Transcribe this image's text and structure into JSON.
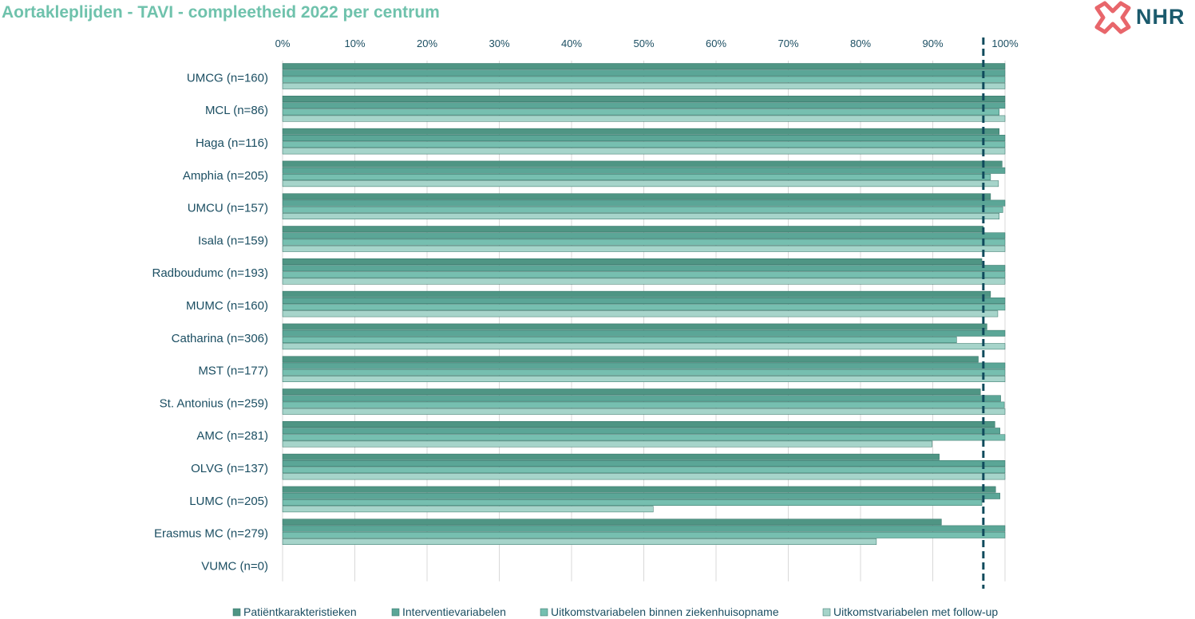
{
  "title": "Aortakleplijden - TAVI  - compleetheid 2022 per centrum",
  "logo": {
    "text": "NHR",
    "icon": "nhr-cross-logo-icon"
  },
  "colors": {
    "series": [
      "#4f9584",
      "#5ba697",
      "#76bfb0",
      "#a6d4ca"
    ],
    "bar_border": "#2e6e62",
    "gridline": "#d9d9d9",
    "norm_line": "#0f4a5c",
    "text": "#1b4e62",
    "title": "#6fc2ac"
  },
  "chart_data": {
    "type": "bar",
    "orientation": "horizontal",
    "title": "Aortakleplijden - TAVI  - compleetheid 2022 per centrum",
    "xlabel": "",
    "ylabel": "",
    "xlim": [
      0,
      100
    ],
    "x_ticks": [
      "0%",
      "10%",
      "20%",
      "30%",
      "40%",
      "50%",
      "60%",
      "70%",
      "80%",
      "90%",
      "100%"
    ],
    "x_axis_position": "top",
    "grid": true,
    "legend_position": "bottom",
    "reference_line": {
      "value": 97,
      "style": "dashed"
    },
    "categories": [
      "UMCG (n=160)",
      "MCL (n=86)",
      "Haga (n=116)",
      "Amphia (n=205)",
      "UMCU (n=157)",
      "Isala (n=159)",
      "Radboudumc (n=193)",
      "MUMC (n=160)",
      "Catharina (n=306)",
      "MST (n=177)",
      "St. Antonius (n=259)",
      "AMC (n=281)",
      "OLVG (n=137)",
      "LUMC (n=205)",
      "Erasmus MC (n=279)",
      "VUMC (n=0)"
    ],
    "series": [
      {
        "name": "Patiëntkarakteristieken",
        "values": [
          100,
          100,
          99.2,
          99.6,
          98,
          97,
          96.8,
          98,
          97.5,
          96.3,
          96.6,
          98.6,
          90.9,
          98.7,
          91.2,
          0
        ]
      },
      {
        "name": "Interventievariabelen",
        "values": [
          100,
          100,
          100,
          100,
          100,
          100,
          100,
          100,
          100,
          100,
          99.4,
          99.3,
          100,
          99.3,
          100,
          0
        ]
      },
      {
        "name": "Uitkomstvariabelen binnen ziekenhuisopname",
        "values": [
          100,
          99.2,
          100,
          98,
          99.7,
          100,
          100,
          100,
          93.3,
          100,
          99.9,
          100,
          100,
          96.8,
          100,
          0
        ]
      },
      {
        "name": "Uitkomstvariabelen met follow-up",
        "values": [
          100,
          100,
          100,
          99.1,
          99.2,
          100,
          100,
          99,
          100,
          100,
          100,
          89.9,
          100,
          51.3,
          82.2,
          0
        ]
      }
    ]
  }
}
